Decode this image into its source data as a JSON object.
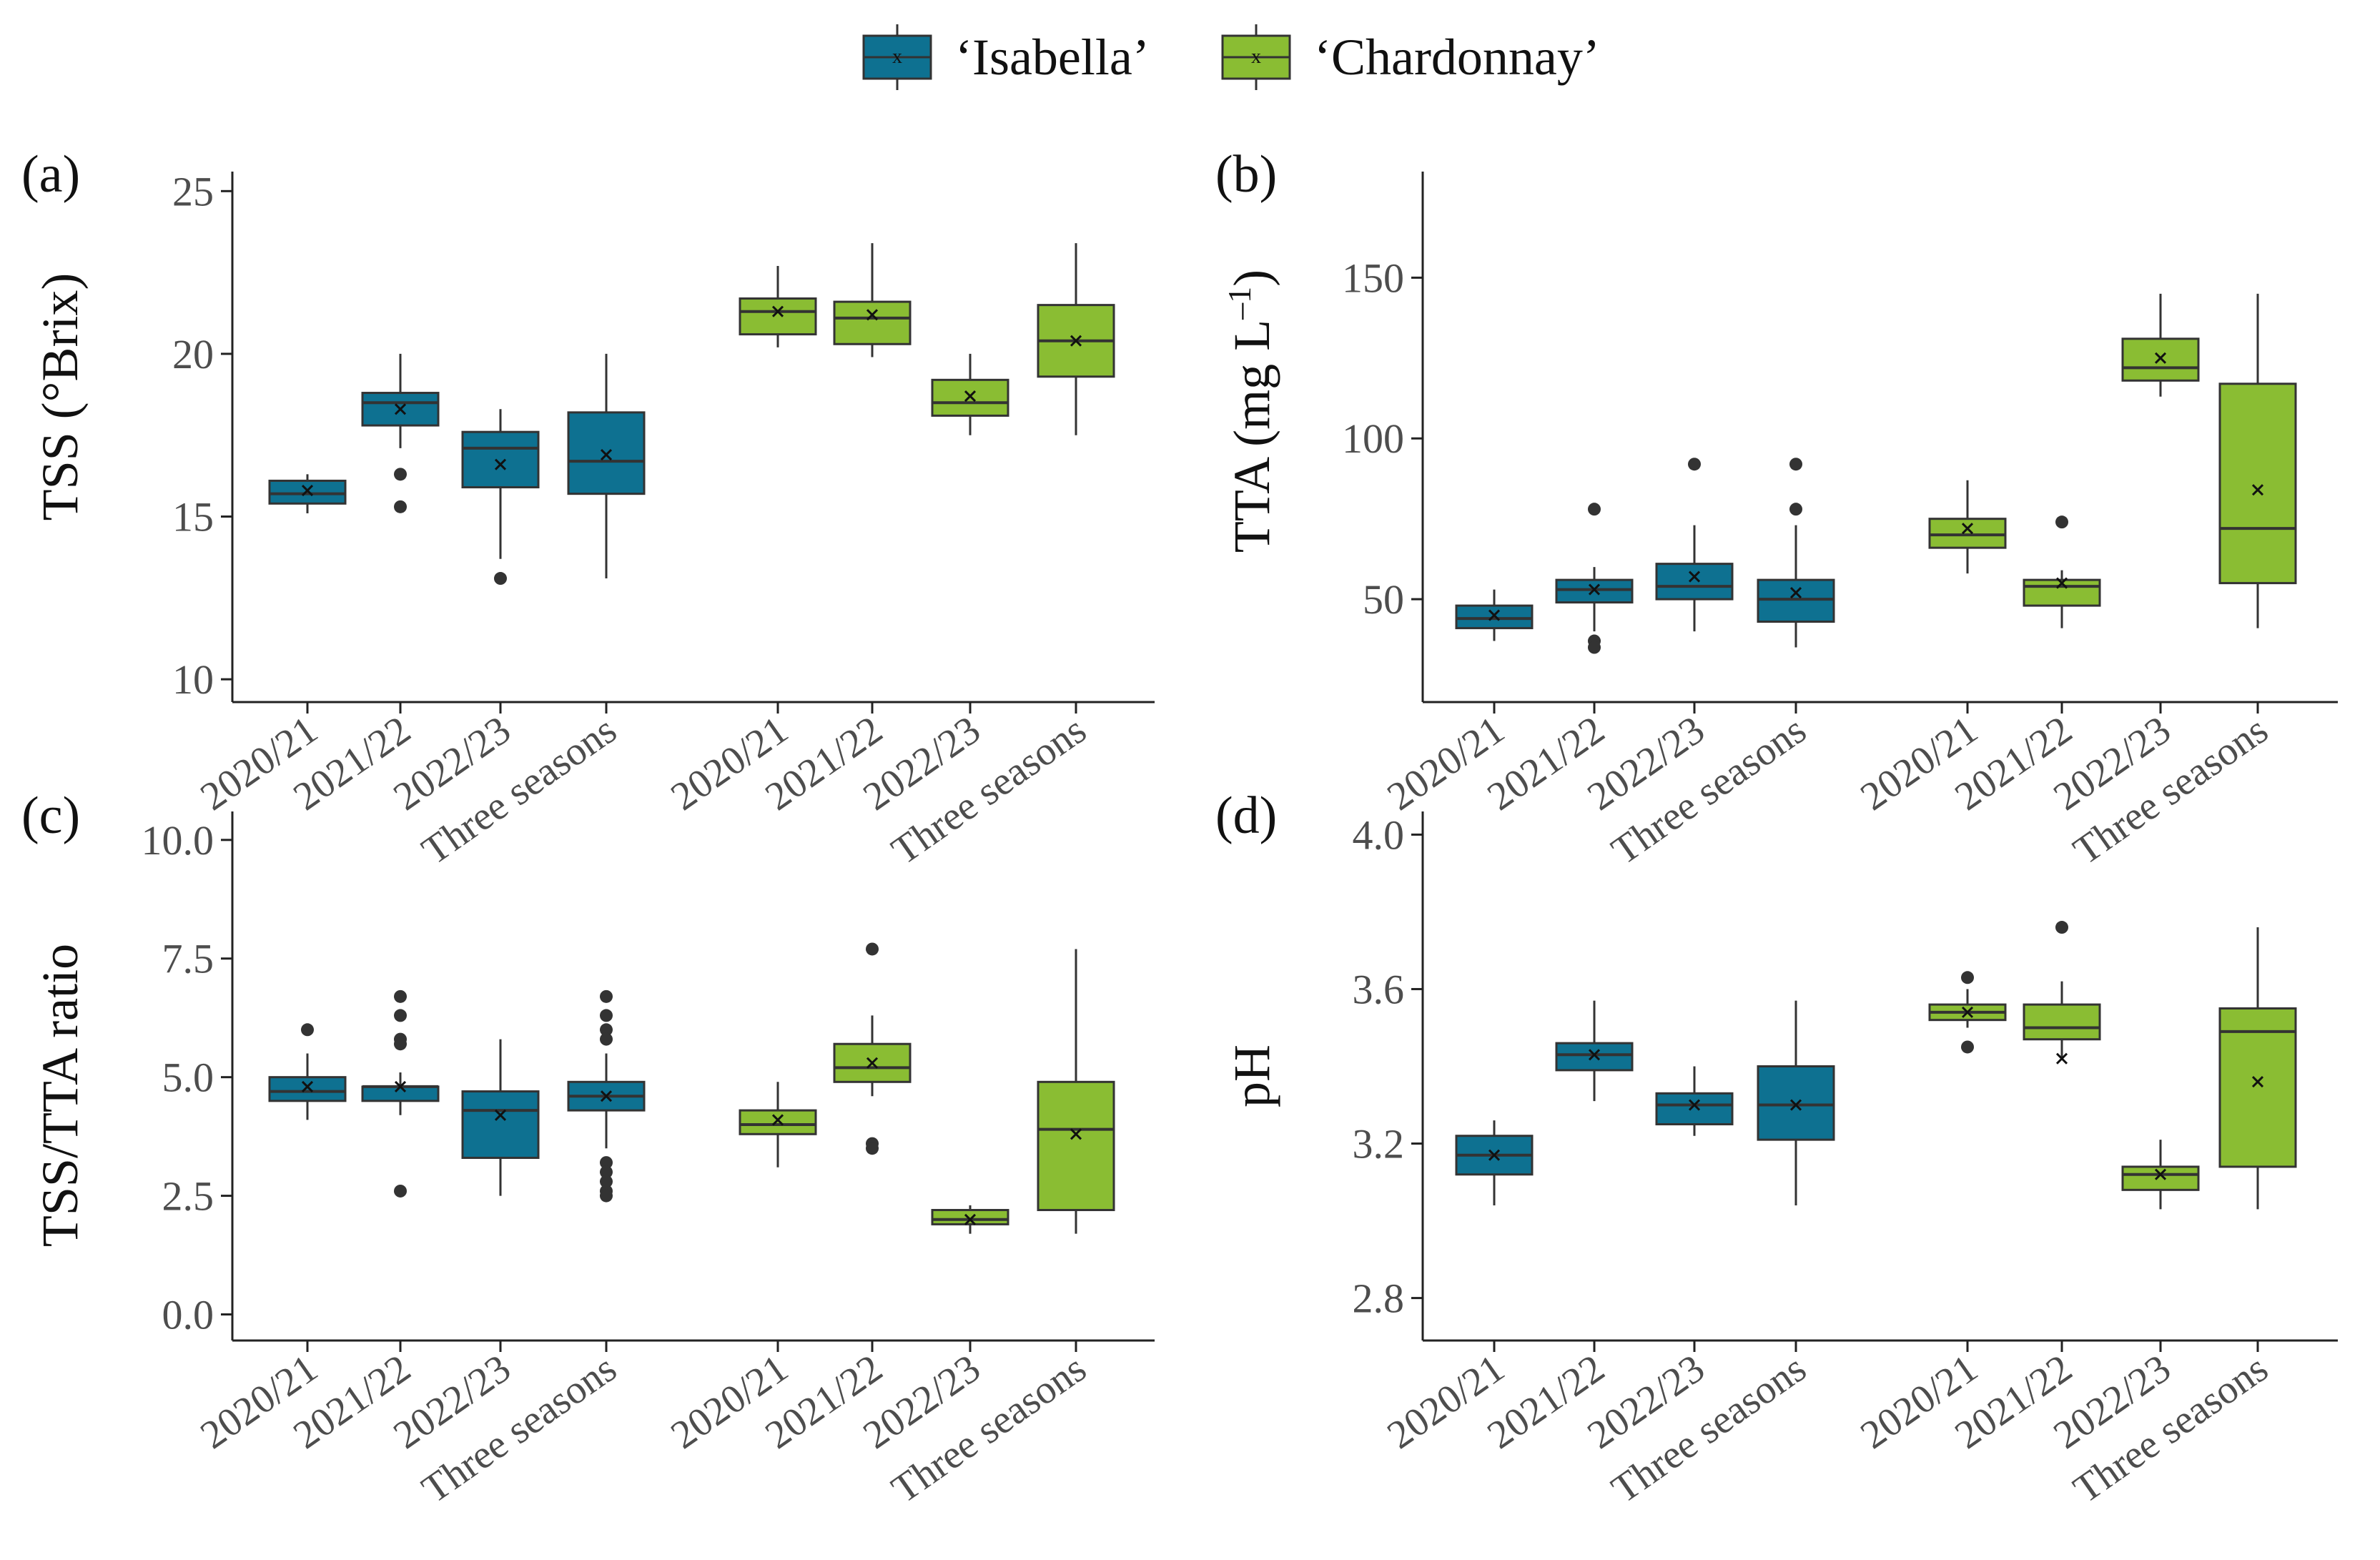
{
  "legend": {
    "isabella": {
      "label": "‘Isabella’",
      "color": "#0e7191"
    },
    "chardonnay": {
      "label": "‘Chardonnay’",
      "color": "#8abd33"
    }
  },
  "colors": {
    "isabella": "#0e7191",
    "chardonnay": "#8abd33"
  },
  "chart_data": [
    {
      "type": "box",
      "panel_label": "(a)",
      "title": "",
      "xlabel": "",
      "ylabel": "TSS (°Brix)",
      "ylim": [
        9.3,
        25.6
      ],
      "yticks": [
        10,
        15,
        20,
        25
      ],
      "ytick_labels": [
        "10",
        "15",
        "20",
        "25"
      ],
      "categories": [
        "2020/21",
        "2021/22",
        "2022/23",
        "Three seasons",
        "2020/21",
        "2021/22",
        "2022/23",
        "Three seasons"
      ],
      "groups": [
        "Isabella",
        "Isabella",
        "Isabella",
        "Isabella",
        "Chardonnay",
        "Chardonnay",
        "Chardonnay",
        "Chardonnay"
      ],
      "boxes": [
        {
          "min": 15.1,
          "q1": 15.4,
          "median": 15.7,
          "q3": 16.1,
          "max": 16.3,
          "mean": 15.8,
          "outliers": []
        },
        {
          "min": 17.1,
          "q1": 17.8,
          "median": 18.5,
          "q3": 18.8,
          "max": 20.0,
          "mean": 18.3,
          "outliers": [
            16.3,
            15.3
          ]
        },
        {
          "min": 13.7,
          "q1": 15.9,
          "median": 17.1,
          "q3": 17.6,
          "max": 18.3,
          "mean": 16.6,
          "outliers": [
            13.1
          ]
        },
        {
          "min": 13.1,
          "q1": 15.7,
          "median": 16.7,
          "q3": 18.2,
          "max": 20.0,
          "mean": 16.9,
          "outliers": []
        },
        {
          "min": 20.2,
          "q1": 20.6,
          "median": 21.3,
          "q3": 21.7,
          "max": 22.7,
          "mean": 21.3,
          "outliers": []
        },
        {
          "min": 19.9,
          "q1": 20.3,
          "median": 21.1,
          "q3": 21.6,
          "max": 23.4,
          "mean": 21.2,
          "outliers": []
        },
        {
          "min": 17.5,
          "q1": 18.1,
          "median": 18.5,
          "q3": 19.2,
          "max": 20.0,
          "mean": 18.7,
          "outliers": []
        },
        {
          "min": 17.5,
          "q1": 19.3,
          "median": 20.4,
          "q3": 21.5,
          "max": 23.4,
          "mean": 20.4,
          "outliers": []
        }
      ]
    },
    {
      "type": "box",
      "panel_label": "(b)",
      "title": "",
      "xlabel": "",
      "ylabel": "TTA (mg L",
      "ylabel_superscript": "–1",
      "ylabel_suffix": ")",
      "ylim": [
        18,
        183
      ],
      "yticks": [
        50,
        100,
        150
      ],
      "ytick_labels": [
        "50",
        "100",
        "150"
      ],
      "categories": [
        "2020/21",
        "2021/22",
        "2022/23",
        "Three seasons",
        "2020/21",
        "2021/22",
        "2022/23",
        "Three seasons"
      ],
      "groups": [
        "Isabella",
        "Isabella",
        "Isabella",
        "Isabella",
        "Chardonnay",
        "Chardonnay",
        "Chardonnay",
        "Chardonnay"
      ],
      "boxes": [
        {
          "min": 37,
          "q1": 41,
          "median": 44,
          "q3": 48,
          "max": 53,
          "mean": 45,
          "outliers": []
        },
        {
          "min": 40,
          "q1": 49,
          "median": 53,
          "q3": 56,
          "max": 60,
          "mean": 53,
          "outliers": [
            78,
            37,
            35
          ]
        },
        {
          "min": 40,
          "q1": 50,
          "median": 54,
          "q3": 61,
          "max": 73,
          "mean": 57,
          "outliers": [
            92
          ]
        },
        {
          "min": 35,
          "q1": 43,
          "median": 50,
          "q3": 56,
          "max": 73,
          "mean": 52,
          "outliers": [
            92,
            78
          ]
        },
        {
          "min": 58,
          "q1": 66,
          "median": 70,
          "q3": 75,
          "max": 87,
          "mean": 72,
          "outliers": []
        },
        {
          "min": 41,
          "q1": 48,
          "median": 54,
          "q3": 56,
          "max": 59,
          "mean": 55,
          "outliers": [
            74
          ]
        },
        {
          "min": 113,
          "q1": 118,
          "median": 122,
          "q3": 131,
          "max": 145,
          "mean": 125,
          "outliers": []
        },
        {
          "min": 41,
          "q1": 55,
          "median": 72,
          "q3": 117,
          "max": 145,
          "mean": 84,
          "outliers": []
        }
      ]
    },
    {
      "type": "box",
      "panel_label": "(c)",
      "title": "",
      "xlabel": "",
      "ylabel": "TSS/TTA ratio",
      "ylim": [
        -0.55,
        10.6
      ],
      "yticks": [
        0,
        2.5,
        5,
        7.5,
        10
      ],
      "ytick_labels": [
        "0.0",
        "2.5",
        "5.0",
        "7.5",
        "10.0"
      ],
      "categories": [
        "2020/21",
        "2021/22",
        "2022/23",
        "Three seasons",
        "2020/21",
        "2021/22",
        "2022/23",
        "Three seasons"
      ],
      "groups": [
        "Isabella",
        "Isabella",
        "Isabella",
        "Isabella",
        "Chardonnay",
        "Chardonnay",
        "Chardonnay",
        "Chardonnay"
      ],
      "boxes": [
        {
          "min": 4.1,
          "q1": 4.5,
          "median": 4.7,
          "q3": 5.0,
          "max": 5.5,
          "mean": 4.8,
          "outliers": [
            6.0
          ]
        },
        {
          "min": 4.2,
          "q1": 4.5,
          "median": 4.8,
          "q3": 4.8,
          "max": 5.1,
          "mean": 4.8,
          "outliers": [
            6.7,
            6.3,
            5.8,
            5.7,
            2.6
          ]
        },
        {
          "min": 2.5,
          "q1": 3.3,
          "median": 4.3,
          "q3": 4.7,
          "max": 5.8,
          "mean": 4.2,
          "outliers": []
        },
        {
          "min": 3.5,
          "q1": 4.3,
          "median": 4.6,
          "q3": 4.9,
          "max": 5.5,
          "mean": 4.6,
          "outliers": [
            6.7,
            6.3,
            6.0,
            5.8,
            3.2,
            3.0,
            2.8,
            2.6,
            2.5
          ]
        },
        {
          "min": 3.1,
          "q1": 3.8,
          "median": 4.0,
          "q3": 4.3,
          "max": 4.9,
          "mean": 4.1,
          "outliers": []
        },
        {
          "min": 4.6,
          "q1": 4.9,
          "median": 5.2,
          "q3": 5.7,
          "max": 6.3,
          "mean": 5.3,
          "outliers": [
            7.7,
            3.6,
            3.5
          ]
        },
        {
          "min": 1.7,
          "q1": 1.9,
          "median": 2.0,
          "q3": 2.2,
          "max": 2.3,
          "mean": 2.0,
          "outliers": []
        },
        {
          "min": 1.7,
          "q1": 2.2,
          "median": 3.9,
          "q3": 4.9,
          "max": 7.7,
          "mean": 3.8,
          "outliers": []
        }
      ]
    },
    {
      "type": "box",
      "panel_label": "(d)",
      "title": "",
      "xlabel": "",
      "ylabel": "pH",
      "ylim": [
        2.69,
        4.06
      ],
      "yticks": [
        2.8,
        3.2,
        3.6,
        4.0
      ],
      "ytick_labels": [
        "2.8",
        "3.2",
        "3.6",
        "4.0"
      ],
      "categories": [
        "2020/21",
        "2021/22",
        "2022/23",
        "Three seasons",
        "2020/21",
        "2021/22",
        "2022/23",
        "Three seasons"
      ],
      "groups": [
        "Isabella",
        "Isabella",
        "Isabella",
        "Isabella",
        "Chardonnay",
        "Chardonnay",
        "Chardonnay",
        "Chardonnay"
      ],
      "boxes": [
        {
          "min": 3.04,
          "q1": 3.12,
          "median": 3.17,
          "q3": 3.22,
          "max": 3.26,
          "mean": 3.17,
          "outliers": []
        },
        {
          "min": 3.31,
          "q1": 3.39,
          "median": 3.43,
          "q3": 3.46,
          "max": 3.57,
          "mean": 3.43,
          "outliers": []
        },
        {
          "min": 3.22,
          "q1": 3.25,
          "median": 3.3,
          "q3": 3.33,
          "max": 3.4,
          "mean": 3.3,
          "outliers": []
        },
        {
          "min": 3.04,
          "q1": 3.21,
          "median": 3.3,
          "q3": 3.4,
          "max": 3.57,
          "mean": 3.3,
          "outliers": []
        },
        {
          "min": 3.5,
          "q1": 3.52,
          "median": 3.54,
          "q3": 3.56,
          "max": 3.6,
          "mean": 3.54,
          "outliers": [
            3.63,
            3.45
          ]
        },
        {
          "min": 3.42,
          "q1": 3.47,
          "median": 3.5,
          "q3": 3.56,
          "max": 3.62,
          "mean": 3.42,
          "outliers": [
            3.76
          ]
        },
        {
          "min": 3.03,
          "q1": 3.08,
          "median": 3.12,
          "q3": 3.14,
          "max": 3.21,
          "mean": 3.12,
          "outliers": []
        },
        {
          "min": 3.03,
          "q1": 3.14,
          "median": 3.49,
          "q3": 3.55,
          "max": 3.76,
          "mean": 3.36,
          "outliers": []
        }
      ]
    }
  ]
}
